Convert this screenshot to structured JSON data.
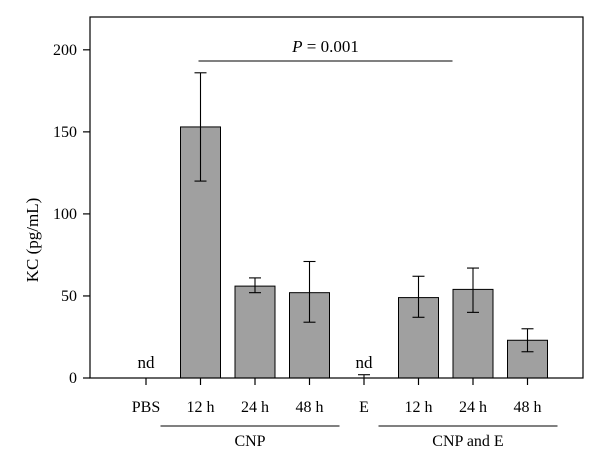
{
  "chart_data": {
    "type": "bar",
    "ylabel": "KC (pg/mL)",
    "xlabel": "",
    "ylim": [
      0,
      220
    ],
    "yticks": [
      0,
      50,
      100,
      150,
      200
    ],
    "categories": [
      "PBS",
      "12 h",
      "24 h",
      "48 h",
      "E",
      "12 h",
      "24 h",
      "48 h"
    ],
    "values": [
      0,
      153,
      56,
      52,
      0,
      49,
      54,
      23
    ],
    "error_low": [
      0,
      120,
      52,
      34,
      0,
      37,
      40,
      16
    ],
    "error_high": [
      0,
      186,
      61,
      71,
      2,
      62,
      67,
      30
    ],
    "bar_drawn": [
      false,
      true,
      true,
      true,
      false,
      true,
      true,
      true
    ],
    "point_labels": [
      "nd",
      "",
      "",
      "",
      "nd",
      "",
      "",
      ""
    ],
    "groups": [
      {
        "label": "CNP",
        "start": 1,
        "end": 3
      },
      {
        "label": "CNP and E",
        "start": 5,
        "end": 7
      }
    ],
    "annotation": {
      "italic": "P",
      "rest": " = 0.001",
      "from": 1,
      "to": 5
    },
    "bar_color": "#a0a0a0",
    "grid": false
  }
}
